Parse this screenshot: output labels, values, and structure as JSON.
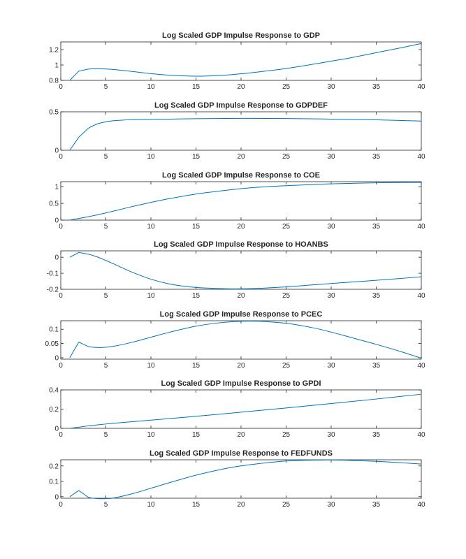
{
  "figure": {
    "line_color": "#0072BD"
  },
  "chart_data": [
    {
      "type": "line",
      "title": "Log Scaled GDP Impulse Response to GDP",
      "xlim": [
        0,
        40
      ],
      "ylim": [
        0.8,
        1.3
      ],
      "xticks": [
        0,
        5,
        10,
        15,
        20,
        25,
        30,
        35,
        40
      ],
      "xtick_labels": [
        "0",
        "5",
        "10",
        "15",
        "20",
        "25",
        "30",
        "35",
        "40"
      ],
      "yticks": [
        0.8,
        1,
        1.2
      ],
      "ytick_labels": [
        "0.8",
        "1",
        "1.2"
      ],
      "x": [
        1,
        2,
        3,
        4,
        5,
        6,
        8,
        10,
        12,
        14,
        15,
        16,
        18,
        20,
        22,
        25,
        28,
        30,
        32,
        35,
        38,
        40
      ],
      "y": [
        0.8,
        0.92,
        0.945,
        0.952,
        0.948,
        0.94,
        0.915,
        0.888,
        0.868,
        0.857,
        0.855,
        0.856,
        0.866,
        0.885,
        0.91,
        0.955,
        1.01,
        1.05,
        1.09,
        1.16,
        1.23,
        1.28
      ]
    },
    {
      "type": "line",
      "title": "Log Scaled GDP Impulse Response to GDPDEF",
      "xlim": [
        0,
        40
      ],
      "ylim": [
        0,
        0.5
      ],
      "xticks": [
        0,
        5,
        10,
        15,
        20,
        25,
        30,
        35,
        40
      ],
      "xtick_labels": [
        "0",
        "5",
        "10",
        "15",
        "20",
        "25",
        "30",
        "35",
        "40"
      ],
      "yticks": [
        0,
        0.5
      ],
      "ytick_labels": [
        "0",
        "0.5"
      ],
      "x": [
        1,
        2,
        3,
        4,
        5,
        6,
        7,
        8,
        10,
        12,
        15,
        20,
        25,
        30,
        35,
        40
      ],
      "y": [
        0,
        0.17,
        0.28,
        0.34,
        0.37,
        0.385,
        0.393,
        0.398,
        0.402,
        0.405,
        0.41,
        0.415,
        0.413,
        0.405,
        0.395,
        0.38
      ]
    },
    {
      "type": "line",
      "title": "Log Scaled GDP Impulse Response to COE",
      "xlim": [
        0,
        40
      ],
      "ylim": [
        0,
        1.15
      ],
      "xticks": [
        0,
        5,
        10,
        15,
        20,
        25,
        30,
        35,
        40
      ],
      "xtick_labels": [
        "0",
        "5",
        "10",
        "15",
        "20",
        "25",
        "30",
        "35",
        "40"
      ],
      "yticks": [
        0,
        0.5,
        1
      ],
      "ytick_labels": [
        "0",
        "0.5",
        "1"
      ],
      "x": [
        1,
        2,
        3,
        4,
        5,
        6,
        8,
        10,
        12,
        15,
        18,
        20,
        22,
        25,
        28,
        30,
        33,
        35,
        38,
        40
      ],
      "y": [
        0,
        0.05,
        0.1,
        0.155,
        0.215,
        0.28,
        0.41,
        0.53,
        0.64,
        0.78,
        0.88,
        0.94,
        0.985,
        1.03,
        1.065,
        1.085,
        1.105,
        1.115,
        1.125,
        1.13
      ]
    },
    {
      "type": "line",
      "title": "Log Scaled GDP Impulse Response to HOANBS",
      "xlim": [
        0,
        40
      ],
      "ylim": [
        -0.2,
        0.04
      ],
      "xticks": [
        0,
        5,
        10,
        15,
        20,
        25,
        30,
        35,
        40
      ],
      "xtick_labels": [
        "0",
        "5",
        "10",
        "15",
        "20",
        "25",
        "30",
        "35",
        "40"
      ],
      "yticks": [
        -0.2,
        -0.1,
        0
      ],
      "ytick_labels": [
        "-0.2",
        "-0.1",
        "0"
      ],
      "x": [
        1,
        2,
        3,
        4,
        5,
        6,
        8,
        10,
        12,
        14,
        16,
        18,
        20,
        22,
        25,
        28,
        30,
        32,
        35,
        38,
        40
      ],
      "y": [
        0,
        0.03,
        0.02,
        0.003,
        -0.02,
        -0.045,
        -0.095,
        -0.137,
        -0.166,
        -0.183,
        -0.192,
        -0.196,
        -0.197,
        -0.194,
        -0.185,
        -0.172,
        -0.164,
        -0.156,
        -0.144,
        -0.131,
        -0.122
      ]
    },
    {
      "type": "line",
      "title": "Log Scaled GDP Impulse Response to PCEC",
      "xlim": [
        0,
        40
      ],
      "ylim": [
        -0.005,
        0.13
      ],
      "xticks": [
        0,
        5,
        10,
        15,
        20,
        25,
        30,
        35,
        40
      ],
      "xtick_labels": [
        "0",
        "5",
        "10",
        "15",
        "20",
        "25",
        "30",
        "35",
        "40"
      ],
      "yticks": [
        0,
        0.05,
        0.1
      ],
      "ytick_labels": [
        "0",
        "0.05",
        "0.1"
      ],
      "x": [
        1,
        2,
        3,
        4,
        5,
        6,
        8,
        10,
        12,
        15,
        18,
        20,
        22,
        25,
        28,
        30,
        32,
        35,
        38,
        40
      ],
      "y": [
        0,
        0.055,
        0.04,
        0.036,
        0.037,
        0.041,
        0.055,
        0.072,
        0.089,
        0.111,
        0.124,
        0.128,
        0.128,
        0.121,
        0.105,
        0.09,
        0.073,
        0.047,
        0.019,
        -0.002
      ]
    },
    {
      "type": "line",
      "title": "Log Scaled GDP Impulse Response to GPDI",
      "xlim": [
        0,
        40
      ],
      "ylim": [
        0,
        0.4
      ],
      "xticks": [
        0,
        5,
        10,
        15,
        20,
        25,
        30,
        35,
        40
      ],
      "xtick_labels": [
        "0",
        "5",
        "10",
        "15",
        "20",
        "25",
        "30",
        "35",
        "40"
      ],
      "yticks": [
        0,
        0.2,
        0.4
      ],
      "ytick_labels": [
        "0",
        "0.2",
        "0.4"
      ],
      "x": [
        1,
        2,
        3,
        5,
        7,
        10,
        15,
        20,
        25,
        30,
        35,
        40
      ],
      "y": [
        0,
        0.012,
        0.025,
        0.045,
        0.062,
        0.085,
        0.125,
        0.168,
        0.212,
        0.258,
        0.305,
        0.355
      ]
    },
    {
      "type": "line",
      "title": "Log Scaled GDP Impulse Response to FEDFUNDS",
      "xlim": [
        0,
        40
      ],
      "ylim": [
        -0.01,
        0.24
      ],
      "xticks": [
        0,
        5,
        10,
        15,
        20,
        25,
        30,
        35,
        40
      ],
      "xtick_labels": [
        "0",
        "5",
        "10",
        "15",
        "20",
        "25",
        "30",
        "35",
        "40"
      ],
      "yticks": [
        0,
        0.1,
        0.2
      ],
      "ytick_labels": [
        "0",
        "0.1",
        "0.2"
      ],
      "x": [
        1,
        2,
        3,
        4,
        5,
        6,
        8,
        10,
        12,
        15,
        18,
        20,
        22,
        25,
        28,
        30,
        32,
        35,
        38,
        40
      ],
      "y": [
        0,
        0.04,
        -0.002,
        -0.012,
        -0.013,
        -0.007,
        0.02,
        0.055,
        0.09,
        0.14,
        0.18,
        0.2,
        0.215,
        0.232,
        0.238,
        0.239,
        0.236,
        0.23,
        0.22,
        0.212
      ]
    }
  ]
}
